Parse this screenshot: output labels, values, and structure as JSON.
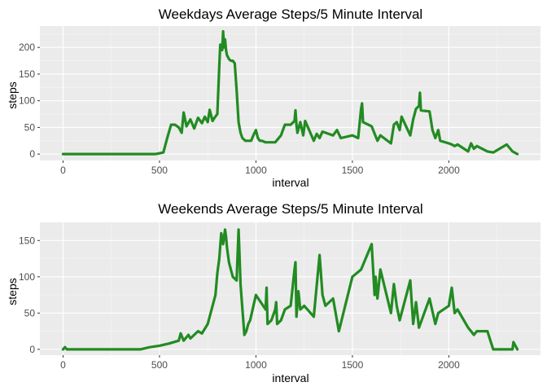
{
  "chart_data": [
    {
      "type": "line",
      "title": "Weekdays Average Steps/5 Minute Interval",
      "xlabel": "interval",
      "ylabel": "steps",
      "xlim": [
        -120,
        2475
      ],
      "ylim": [
        -12,
        240
      ],
      "xticks": [
        0,
        500,
        1000,
        1500,
        2000
      ],
      "yticks": [
        0,
        50,
        100,
        150,
        200
      ],
      "grid": true,
      "line_color": "#228b22",
      "panel_color": "#ebebeb",
      "series": [
        {
          "x": [
            0,
            200,
            400,
            480,
            520,
            540,
            560,
            580,
            600,
            615,
            625,
            640,
            660,
            680,
            700,
            720,
            735,
            750,
            760,
            775,
            785,
            800,
            810,
            815,
            825,
            830,
            835,
            840,
            845,
            850,
            855,
            860,
            870,
            880,
            890,
            900,
            910,
            920,
            930,
            945,
            960,
            975,
            990,
            1000,
            1010,
            1020,
            1030,
            1050,
            1100,
            1130,
            1150,
            1180,
            1200,
            1205,
            1210,
            1215,
            1230,
            1245,
            1255,
            1300,
            1315,
            1330,
            1345,
            1400,
            1420,
            1440,
            1500,
            1530,
            1545,
            1550,
            1555,
            1600,
            1630,
            1645,
            1700,
            1715,
            1730,
            1745,
            1755,
            1800,
            1815,
            1830,
            1845,
            1850,
            1855,
            1900,
            1915,
            1930,
            1945,
            1955,
            2000,
            2015,
            2030,
            2045,
            2100,
            2115,
            2130,
            2145,
            2200,
            2230,
            2300,
            2330,
            2355
          ],
          "y": [
            0,
            0,
            0,
            0,
            3,
            30,
            55,
            55,
            50,
            40,
            78,
            52,
            65,
            48,
            68,
            58,
            70,
            60,
            83,
            62,
            68,
            75,
            165,
            205,
            195,
            230,
            200,
            215,
            195,
            185,
            182,
            178,
            175,
            175,
            170,
            120,
            60,
            40,
            30,
            25,
            25,
            25,
            38,
            45,
            30,
            25,
            25,
            22,
            22,
            35,
            55,
            55,
            62,
            82,
            55,
            40,
            60,
            35,
            62,
            25,
            38,
            30,
            42,
            35,
            45,
            30,
            35,
            30,
            85,
            95,
            60,
            52,
            25,
            35,
            20,
            55,
            60,
            45,
            70,
            35,
            65,
            85,
            90,
            115,
            82,
            80,
            45,
            30,
            45,
            25,
            20,
            18,
            15,
            18,
            5,
            20,
            10,
            15,
            5,
            3,
            18,
            5,
            0
          ]
        }
      ]
    },
    {
      "type": "line",
      "title": "Weekends Average Steps/5 Minute Interval",
      "xlabel": "interval",
      "ylabel": "steps",
      "xlim": [
        -120,
        2475
      ],
      "ylim": [
        -8,
        175
      ],
      "xticks": [
        0,
        500,
        1000,
        1500,
        2000
      ],
      "yticks": [
        0,
        50,
        100,
        150
      ],
      "grid": true,
      "line_color": "#228b22",
      "panel_color": "#ebebeb",
      "series": [
        {
          "x": [
            0,
            10,
            20,
            30,
            100,
            200,
            300,
            400,
            450,
            500,
            550,
            600,
            610,
            625,
            650,
            660,
            700,
            720,
            750,
            790,
            800,
            810,
            820,
            830,
            840,
            845,
            850,
            855,
            860,
            870,
            880,
            900,
            910,
            920,
            940,
            950,
            960,
            970,
            1000,
            1050,
            1055,
            1060,
            1080,
            1100,
            1105,
            1110,
            1130,
            1150,
            1180,
            1200,
            1205,
            1210,
            1220,
            1230,
            1250,
            1300,
            1330,
            1345,
            1360,
            1400,
            1430,
            1500,
            1545,
            1600,
            1615,
            1620,
            1630,
            1645,
            1700,
            1715,
            1730,
            1745,
            1800,
            1815,
            1830,
            1845,
            1900,
            1930,
            1945,
            2000,
            2015,
            2030,
            2045,
            2100,
            2115,
            2130,
            2145,
            2200,
            2230,
            2300,
            2330,
            2335,
            2355
          ],
          "y": [
            0,
            3,
            0,
            0,
            0,
            0,
            0,
            0,
            3,
            5,
            8,
            12,
            22,
            12,
            20,
            15,
            25,
            22,
            35,
            75,
            105,
            125,
            160,
            145,
            165,
            155,
            140,
            130,
            120,
            110,
            100,
            95,
            165,
            90,
            20,
            25,
            35,
            40,
            75,
            55,
            85,
            35,
            40,
            55,
            65,
            35,
            40,
            55,
            60,
            110,
            120,
            45,
            80,
            55,
            60,
            45,
            130,
            75,
            60,
            70,
            25,
            100,
            110,
            145,
            75,
            100,
            70,
            110,
            50,
            90,
            60,
            40,
            95,
            35,
            65,
            30,
            70,
            35,
            50,
            60,
            85,
            50,
            55,
            30,
            25,
            20,
            25,
            25,
            0,
            0,
            0,
            10,
            0
          ]
        }
      ]
    }
  ]
}
